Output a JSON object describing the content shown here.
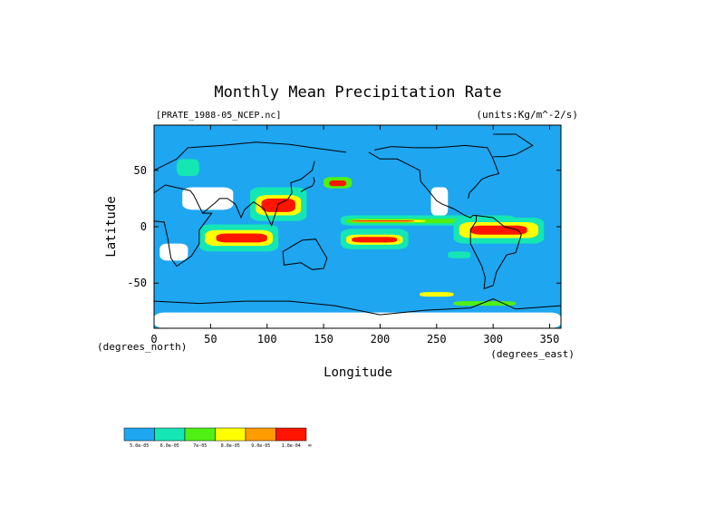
{
  "chart_data": {
    "type": "heatmap",
    "title": "Monthly Mean Precipitation Rate",
    "source_label": "[PRATE_1988-05_NCEP.nc]",
    "units_label": "(units:Kg/m^-2/s)",
    "xlabel": "Longitude",
    "ylabel": "Latitude",
    "x_unit_label": "(degrees_east)",
    "y_unit_label": "(degrees_north)",
    "xlim": [
      0,
      360
    ],
    "ylim": [
      -90,
      90
    ],
    "x_ticks": [
      0,
      50,
      100,
      150,
      200,
      250,
      300,
      350
    ],
    "y_ticks": [
      -50,
      0,
      50
    ],
    "background_level_color": "#1ea6f0",
    "missing_color": "#ffffff",
    "coastline_color": "#000000",
    "levels": [
      {
        "label": "5.0e-05",
        "color": "#1ea6f0"
      },
      {
        "label": "6.0e-05",
        "color": "#14e6b4"
      },
      {
        "label": "7e-05",
        "color": "#50f014"
      },
      {
        "label": "8.0e-05",
        "color": "#ffff00"
      },
      {
        "label": "9.0e-05",
        "color": "#ff9c00"
      },
      {
        "label": "1.0e-04",
        "color": "#ff1400"
      }
    ],
    "colorbar_end_label": "∞",
    "regions": [
      {
        "lon": [
          165,
          320
        ],
        "lat": [
          1,
          10
        ],
        "level": 1
      },
      {
        "lon": [
          170,
          300
        ],
        "lat": [
          3,
          7
        ],
        "level": 2
      },
      {
        "lon": [
          175,
          240
        ],
        "lat": [
          4,
          6
        ],
        "level": 3
      },
      {
        "lon": [
          175,
          230
        ],
        "lat": [
          4.5,
          5.5
        ],
        "level": 5
      },
      {
        "lon": [
          40,
          110
        ],
        "lat": [
          -22,
          2
        ],
        "level": 1
      },
      {
        "lon": [
          45,
          105
        ],
        "lat": [
          -17,
          -3
        ],
        "level": 3
      },
      {
        "lon": [
          55,
          100
        ],
        "lat": [
          -14,
          -6
        ],
        "level": 5
      },
      {
        "lon": [
          165,
          225
        ],
        "lat": [
          -20,
          -2
        ],
        "level": 1
      },
      {
        "lon": [
          170,
          220
        ],
        "lat": [
          -16,
          -7
        ],
        "level": 3
      },
      {
        "lon": [
          175,
          215
        ],
        "lat": [
          -14,
          -9
        ],
        "level": 5
      },
      {
        "lon": [
          85,
          135
        ],
        "lat": [
          5,
          35
        ],
        "level": 1
      },
      {
        "lon": [
          90,
          130
        ],
        "lat": [
          10,
          28
        ],
        "level": 3
      },
      {
        "lon": [
          95,
          125
        ],
        "lat": [
          13,
          25
        ],
        "level": 5
      },
      {
        "lon": [
          265,
          345
        ],
        "lat": [
          -15,
          8
        ],
        "level": 1
      },
      {
        "lon": [
          270,
          340
        ],
        "lat": [
          -10,
          4
        ],
        "level": 3
      },
      {
        "lon": [
          280,
          330
        ],
        "lat": [
          -7,
          1
        ],
        "level": 5
      },
      {
        "lon": [
          150,
          175
        ],
        "lat": [
          34,
          44
        ],
        "level": 2
      },
      {
        "lon": [
          155,
          170
        ],
        "lat": [
          36,
          41
        ],
        "level": 5
      },
      {
        "lon": [
          235,
          265
        ],
        "lat": [
          -62,
          -58
        ],
        "level": 3
      },
      {
        "lon": [
          265,
          320
        ],
        "lat": [
          -70,
          -66
        ],
        "level": 2
      },
      {
        "lon": [
          20,
          40
        ],
        "lat": [
          45,
          60
        ],
        "level": 1
      },
      {
        "lon": [
          260,
          280
        ],
        "lat": [
          -28,
          -22
        ],
        "level": 1
      },
      {
        "lon": [
          0,
          360
        ],
        "lat": [
          -90,
          -76
        ],
        "level": -1
      },
      {
        "lon": [
          25,
          70
        ],
        "lat": [
          15,
          35
        ],
        "level": -1
      },
      {
        "lon": [
          5,
          30
        ],
        "lat": [
          -30,
          -15
        ],
        "level": -1
      },
      {
        "lon": [
          245,
          260
        ],
        "lat": [
          10,
          35
        ],
        "level": -1
      }
    ]
  }
}
